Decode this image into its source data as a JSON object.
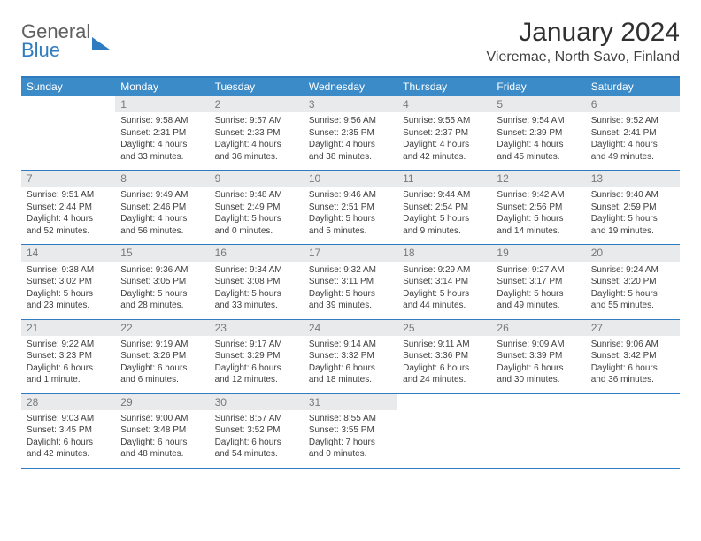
{
  "logo": {
    "line1": "General",
    "line2": "Blue"
  },
  "title": "January 2024",
  "location": "Vieremae, North Savo, Finland",
  "colors": {
    "header_bg": "#3b8bc9",
    "accent": "#2f7dc0",
    "daynum_bg": "#e9eaeb",
    "daynum_fg": "#78797a",
    "text": "#404040"
  },
  "day_names": [
    "Sunday",
    "Monday",
    "Tuesday",
    "Wednesday",
    "Thursday",
    "Friday",
    "Saturday"
  ],
  "weeks": [
    [
      null,
      {
        "n": "1",
        "sr": "Sunrise: 9:58 AM",
        "ss": "Sunset: 2:31 PM",
        "d1": "Daylight: 4 hours",
        "d2": "and 33 minutes."
      },
      {
        "n": "2",
        "sr": "Sunrise: 9:57 AM",
        "ss": "Sunset: 2:33 PM",
        "d1": "Daylight: 4 hours",
        "d2": "and 36 minutes."
      },
      {
        "n": "3",
        "sr": "Sunrise: 9:56 AM",
        "ss": "Sunset: 2:35 PM",
        "d1": "Daylight: 4 hours",
        "d2": "and 38 minutes."
      },
      {
        "n": "4",
        "sr": "Sunrise: 9:55 AM",
        "ss": "Sunset: 2:37 PM",
        "d1": "Daylight: 4 hours",
        "d2": "and 42 minutes."
      },
      {
        "n": "5",
        "sr": "Sunrise: 9:54 AM",
        "ss": "Sunset: 2:39 PM",
        "d1": "Daylight: 4 hours",
        "d2": "and 45 minutes."
      },
      {
        "n": "6",
        "sr": "Sunrise: 9:52 AM",
        "ss": "Sunset: 2:41 PM",
        "d1": "Daylight: 4 hours",
        "d2": "and 49 minutes."
      }
    ],
    [
      {
        "n": "7",
        "sr": "Sunrise: 9:51 AM",
        "ss": "Sunset: 2:44 PM",
        "d1": "Daylight: 4 hours",
        "d2": "and 52 minutes."
      },
      {
        "n": "8",
        "sr": "Sunrise: 9:49 AM",
        "ss": "Sunset: 2:46 PM",
        "d1": "Daylight: 4 hours",
        "d2": "and 56 minutes."
      },
      {
        "n": "9",
        "sr": "Sunrise: 9:48 AM",
        "ss": "Sunset: 2:49 PM",
        "d1": "Daylight: 5 hours",
        "d2": "and 0 minutes."
      },
      {
        "n": "10",
        "sr": "Sunrise: 9:46 AM",
        "ss": "Sunset: 2:51 PM",
        "d1": "Daylight: 5 hours",
        "d2": "and 5 minutes."
      },
      {
        "n": "11",
        "sr": "Sunrise: 9:44 AM",
        "ss": "Sunset: 2:54 PM",
        "d1": "Daylight: 5 hours",
        "d2": "and 9 minutes."
      },
      {
        "n": "12",
        "sr": "Sunrise: 9:42 AM",
        "ss": "Sunset: 2:56 PM",
        "d1": "Daylight: 5 hours",
        "d2": "and 14 minutes."
      },
      {
        "n": "13",
        "sr": "Sunrise: 9:40 AM",
        "ss": "Sunset: 2:59 PM",
        "d1": "Daylight: 5 hours",
        "d2": "and 19 minutes."
      }
    ],
    [
      {
        "n": "14",
        "sr": "Sunrise: 9:38 AM",
        "ss": "Sunset: 3:02 PM",
        "d1": "Daylight: 5 hours",
        "d2": "and 23 minutes."
      },
      {
        "n": "15",
        "sr": "Sunrise: 9:36 AM",
        "ss": "Sunset: 3:05 PM",
        "d1": "Daylight: 5 hours",
        "d2": "and 28 minutes."
      },
      {
        "n": "16",
        "sr": "Sunrise: 9:34 AM",
        "ss": "Sunset: 3:08 PM",
        "d1": "Daylight: 5 hours",
        "d2": "and 33 minutes."
      },
      {
        "n": "17",
        "sr": "Sunrise: 9:32 AM",
        "ss": "Sunset: 3:11 PM",
        "d1": "Daylight: 5 hours",
        "d2": "and 39 minutes."
      },
      {
        "n": "18",
        "sr": "Sunrise: 9:29 AM",
        "ss": "Sunset: 3:14 PM",
        "d1": "Daylight: 5 hours",
        "d2": "and 44 minutes."
      },
      {
        "n": "19",
        "sr": "Sunrise: 9:27 AM",
        "ss": "Sunset: 3:17 PM",
        "d1": "Daylight: 5 hours",
        "d2": "and 49 minutes."
      },
      {
        "n": "20",
        "sr": "Sunrise: 9:24 AM",
        "ss": "Sunset: 3:20 PM",
        "d1": "Daylight: 5 hours",
        "d2": "and 55 minutes."
      }
    ],
    [
      {
        "n": "21",
        "sr": "Sunrise: 9:22 AM",
        "ss": "Sunset: 3:23 PM",
        "d1": "Daylight: 6 hours",
        "d2": "and 1 minute."
      },
      {
        "n": "22",
        "sr": "Sunrise: 9:19 AM",
        "ss": "Sunset: 3:26 PM",
        "d1": "Daylight: 6 hours",
        "d2": "and 6 minutes."
      },
      {
        "n": "23",
        "sr": "Sunrise: 9:17 AM",
        "ss": "Sunset: 3:29 PM",
        "d1": "Daylight: 6 hours",
        "d2": "and 12 minutes."
      },
      {
        "n": "24",
        "sr": "Sunrise: 9:14 AM",
        "ss": "Sunset: 3:32 PM",
        "d1": "Daylight: 6 hours",
        "d2": "and 18 minutes."
      },
      {
        "n": "25",
        "sr": "Sunrise: 9:11 AM",
        "ss": "Sunset: 3:36 PM",
        "d1": "Daylight: 6 hours",
        "d2": "and 24 minutes."
      },
      {
        "n": "26",
        "sr": "Sunrise: 9:09 AM",
        "ss": "Sunset: 3:39 PM",
        "d1": "Daylight: 6 hours",
        "d2": "and 30 minutes."
      },
      {
        "n": "27",
        "sr": "Sunrise: 9:06 AM",
        "ss": "Sunset: 3:42 PM",
        "d1": "Daylight: 6 hours",
        "d2": "and 36 minutes."
      }
    ],
    [
      {
        "n": "28",
        "sr": "Sunrise: 9:03 AM",
        "ss": "Sunset: 3:45 PM",
        "d1": "Daylight: 6 hours",
        "d2": "and 42 minutes."
      },
      {
        "n": "29",
        "sr": "Sunrise: 9:00 AM",
        "ss": "Sunset: 3:48 PM",
        "d1": "Daylight: 6 hours",
        "d2": "and 48 minutes."
      },
      {
        "n": "30",
        "sr": "Sunrise: 8:57 AM",
        "ss": "Sunset: 3:52 PM",
        "d1": "Daylight: 6 hours",
        "d2": "and 54 minutes."
      },
      {
        "n": "31",
        "sr": "Sunrise: 8:55 AM",
        "ss": "Sunset: 3:55 PM",
        "d1": "Daylight: 7 hours",
        "d2": "and 0 minutes."
      },
      null,
      null,
      null
    ]
  ]
}
